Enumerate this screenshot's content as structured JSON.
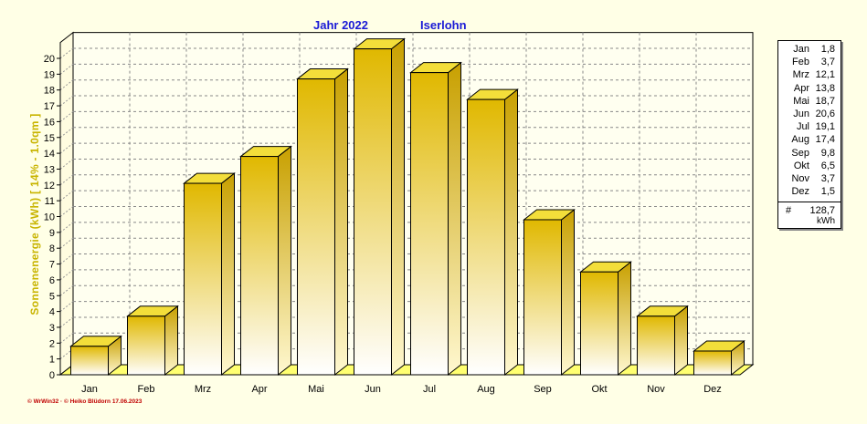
{
  "title": {
    "year_label": "Jahr  2022",
    "location": "Iserlohn"
  },
  "footer_text": "© WrWin32 · © Heiko Blüdorn  17.06.2023",
  "chart_data": {
    "type": "bar",
    "categories": [
      "Jan",
      "Feb",
      "Mrz",
      "Apr",
      "Mai",
      "Jun",
      "Jul",
      "Aug",
      "Sep",
      "Okt",
      "Nov",
      "Dez"
    ],
    "values": [
      1.8,
      3.7,
      12.1,
      13.8,
      18.7,
      20.6,
      19.1,
      17.4,
      9.8,
      6.5,
      3.7,
      1.5
    ],
    "ylabel": "Sonnenenergie  (kWh)   [ 14% - 1.0qm ]",
    "xlabel": "",
    "ylim": [
      0,
      21
    ],
    "yticks": [
      "0",
      "1",
      "2",
      "3",
      "4",
      "5",
      "6",
      "7",
      "8",
      "9",
      "10",
      "11",
      "12",
      "13",
      "14",
      "15",
      "16",
      "17",
      "18",
      "19",
      "20"
    ],
    "grid": true,
    "legend_position": "right",
    "colors": {
      "bar_top": "#e0b800",
      "bar_bottom": "#ffffff",
      "bar_side": "#c8a000",
      "bar_cap": "#f3de3a",
      "floor": "#ffff70",
      "plot_bg": "#fffff0",
      "title": "#1a1ad6",
      "ylabel": "#c8b400",
      "footer": "#c00000"
    }
  },
  "legend": {
    "entries": [
      {
        "month": "Jan",
        "value": "1,8"
      },
      {
        "month": "Feb",
        "value": "3,7"
      },
      {
        "month": "Mrz",
        "value": "12,1"
      },
      {
        "month": "Apr",
        "value": "13,8"
      },
      {
        "month": "Mai",
        "value": "18,7"
      },
      {
        "month": "Jun",
        "value": "20,6"
      },
      {
        "month": "Jul",
        "value": "19,1"
      },
      {
        "month": "Aug",
        "value": "17,4"
      },
      {
        "month": "Sep",
        "value": "9,8"
      },
      {
        "month": "Okt",
        "value": "6,5"
      },
      {
        "month": "Nov",
        "value": "3,7"
      },
      {
        "month": "Dez",
        "value": "1,5"
      }
    ],
    "total_symbol": "#",
    "total": "128,7",
    "unit": "kWh"
  }
}
